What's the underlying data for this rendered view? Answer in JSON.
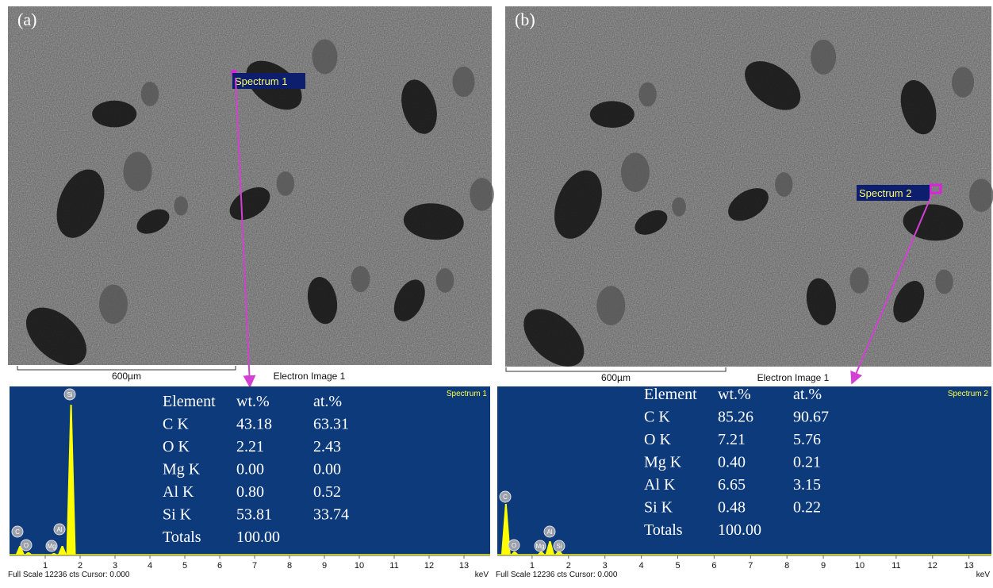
{
  "panels": [
    {
      "label": "(a)",
      "spectrum_tag": "Spectrum 1",
      "scale_bar": "600µm",
      "image_caption": "Electron Image 1",
      "spectrum_title": "Spectrum 1",
      "table": {
        "header": [
          "Element",
          "wt.%",
          "at.%"
        ],
        "rows": [
          [
            "C K",
            "43.18",
            "63.31"
          ],
          [
            "O K",
            "2.21",
            "2.43"
          ],
          [
            "Mg K",
            "0.00",
            "0.00"
          ],
          [
            "Al K",
            "0.80",
            "0.52"
          ],
          [
            "Si K",
            "53.81",
            "33.74"
          ],
          [
            "Totals",
            "100.00"
          ]
        ]
      },
      "peaks": [
        "C",
        "O",
        "Mg",
        "Al",
        "Si"
      ],
      "x_ticks": [
        "1",
        "2",
        "3",
        "4",
        "5",
        "6",
        "7",
        "8",
        "9",
        "10",
        "11",
        "12",
        "13"
      ],
      "x_unit": "keV",
      "footer": "Full Scale 12236 cts Cursor: 0.000"
    },
    {
      "label": "(b)",
      "spectrum_tag": "Spectrum 2",
      "scale_bar": "600µm",
      "image_caption": "Electron Image 1",
      "spectrum_title": "Spectrum 2",
      "table": {
        "header": [
          "Element",
          "wt.%",
          "at.%"
        ],
        "rows": [
          [
            "C K",
            "85.26",
            "90.67"
          ],
          [
            "O K",
            "7.21",
            "5.76"
          ],
          [
            "Mg K",
            "0.40",
            "0.21"
          ],
          [
            "Al K",
            "6.65",
            "3.15"
          ],
          [
            "Si K",
            "0.48",
            "0.22"
          ],
          [
            "Totals",
            "100.00"
          ]
        ]
      },
      "peaks": [
        "C",
        "O",
        "Mg",
        "Al",
        "Si"
      ],
      "x_ticks": [
        "1",
        "2",
        "3",
        "4",
        "5",
        "6",
        "7",
        "8",
        "9",
        "10",
        "11",
        "12",
        "13"
      ],
      "x_unit": "keV",
      "footer": "Full Scale 12236 cts Cursor: 0.000"
    }
  ]
}
